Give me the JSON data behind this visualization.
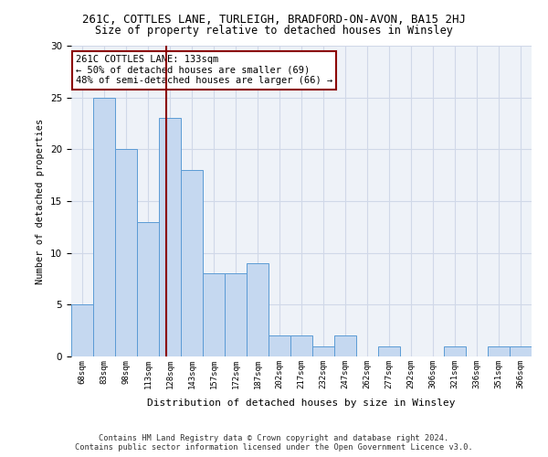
{
  "title1": "261C, COTTLES LANE, TURLEIGH, BRADFORD-ON-AVON, BA15 2HJ",
  "title2": "Size of property relative to detached houses in Winsley",
  "xlabel": "Distribution of detached houses by size in Winsley",
  "ylabel": "Number of detached properties",
  "categories": [
    "68sqm",
    "83sqm",
    "98sqm",
    "113sqm",
    "128sqm",
    "143sqm",
    "157sqm",
    "172sqm",
    "187sqm",
    "202sqm",
    "217sqm",
    "232sqm",
    "247sqm",
    "262sqm",
    "277sqm",
    "292sqm",
    "306sqm",
    "321sqm",
    "336sqm",
    "351sqm",
    "366sqm"
  ],
  "values": [
    5,
    25,
    20,
    13,
    23,
    18,
    8,
    8,
    9,
    2,
    2,
    1,
    2,
    0,
    1,
    0,
    0,
    1,
    0,
    1,
    1
  ],
  "bar_color": "#c5d8f0",
  "bar_edge_color": "#5b9bd5",
  "vline_color": "#8b0000",
  "annotation_text": "261C COTTLES LANE: 133sqm\n← 50% of detached houses are smaller (69)\n48% of semi-detached houses are larger (66) →",
  "annotation_box_edge": "#8b0000",
  "ylim": [
    0,
    30
  ],
  "yticks": [
    0,
    5,
    10,
    15,
    20,
    25,
    30
  ],
  "grid_color": "#d0d8e8",
  "bg_color": "#eef2f8",
  "footer1": "Contains HM Land Registry data © Crown copyright and database right 2024.",
  "footer2": "Contains public sector information licensed under the Open Government Licence v3.0."
}
